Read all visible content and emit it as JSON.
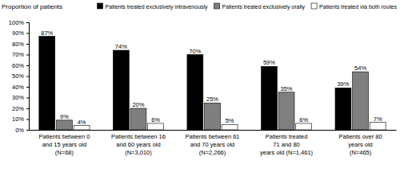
{
  "chart_data": {
    "type": "bar",
    "ylabel": "Proportion of patients",
    "categories": [
      "Patients between 0\nand 15 years old\n(N=68)",
      "Patients between 16\nand 60 years old\n(N=3,010)",
      "Patients between 61\nand 70 years old\n(N=2,266)",
      "Patients treated\n71 and 80\nyears old (N=1,461)",
      "Patients over 80\nyears old\n(N=465)"
    ],
    "series": [
      {
        "name": "Patients treated exclusively intravenously",
        "color": "#000000",
        "values": [
          87,
          74,
          70,
          59,
          39
        ],
        "value_labels": [
          "87%",
          "74%",
          "70%",
          "59%",
          "39%"
        ]
      },
      {
        "name": "Patients treated exclusively orally",
        "color": "#7f7f7f",
        "values": [
          9,
          20,
          25,
          35,
          54
        ],
        "value_labels": [
          "9%",
          "20%",
          "25%",
          "35%",
          "54%"
        ]
      },
      {
        "name": "Patients treated via both routes",
        "color": "#ffffff",
        "values": [
          4,
          6,
          5,
          6,
          7
        ],
        "value_labels": [
          "4%",
          "6%",
          "5%",
          "6%",
          "7%"
        ]
      }
    ],
    "ylim": [
      0,
      100
    ],
    "yticks": [
      {
        "value": 0,
        "label": "0%"
      },
      {
        "value": 10,
        "label": "10%"
      },
      {
        "value": 20,
        "label": "20%"
      },
      {
        "value": 30,
        "label": "30%"
      },
      {
        "value": 40,
        "label": "40%"
      },
      {
        "value": 50,
        "label": "50%"
      },
      {
        "value": 60,
        "label": "60%"
      },
      {
        "value": 70,
        "label": "70%"
      },
      {
        "value": 80,
        "label": "80%"
      },
      {
        "value": 90,
        "label": "90%"
      },
      {
        "value": 100,
        "label": "100%"
      }
    ],
    "grid": false,
    "legend": "top",
    "data_labels": true
  }
}
